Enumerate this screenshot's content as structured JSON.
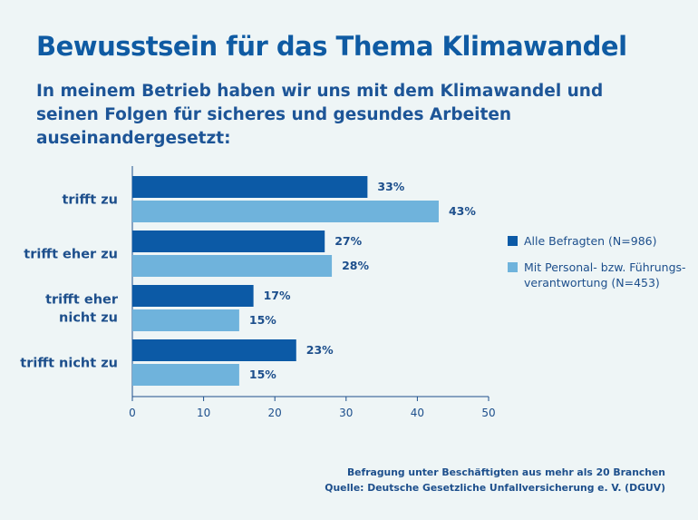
{
  "title": "Bewusstsein für das Thema Klimawandel",
  "subtitle": "In meinem Betrieb haben wir uns mit dem Klimawandel und seinen Folgen für sicheres und gesundes Arbeiten auseinandergesetzt:",
  "colors": {
    "series1": "#0c5aa6",
    "series2": "#6fb3dc",
    "text": "#1d4f8c",
    "title": "#0f5ba3",
    "background": "#eef5f6"
  },
  "chart_data": {
    "type": "bar",
    "orientation": "horizontal",
    "categories": [
      "trifft zu",
      "trifft eher zu",
      "trifft eher nicht zu",
      "trifft nicht zu"
    ],
    "category_lines": [
      [
        "trifft zu"
      ],
      [
        "trifft eher zu"
      ],
      [
        "trifft eher",
        "nicht zu"
      ],
      [
        "trifft nicht zu"
      ]
    ],
    "series": [
      {
        "name": "Alle Befragten (N=986)",
        "values": [
          33,
          27,
          17,
          23
        ],
        "labels": [
          "33%",
          "27%",
          "17%",
          "23%"
        ]
      },
      {
        "name": "Mit Personal- bzw. Führungsverantwortung (N=453)",
        "values": [
          43,
          28,
          15,
          15
        ],
        "labels": [
          "43%",
          "28%",
          "15%",
          "15%"
        ]
      }
    ],
    "xlim": [
      0,
      50
    ],
    "xticks": [
      "0",
      "10",
      "20",
      "30",
      "40",
      "50"
    ],
    "grid": false,
    "legend_position": "right"
  },
  "legend": {
    "items": [
      {
        "label": "Alle Befragten (N=986)"
      },
      {
        "label_line1": "Mit Personal- bzw. Führungs-",
        "label_line2": "verantwortung (N=453)"
      }
    ]
  },
  "footer": {
    "line1": "Befragung unter Beschäftigten aus mehr als 20 Branchen",
    "line2": "Quelle: Deutsche Gesetzliche Unfallversicherung e. V. (DGUV)"
  }
}
